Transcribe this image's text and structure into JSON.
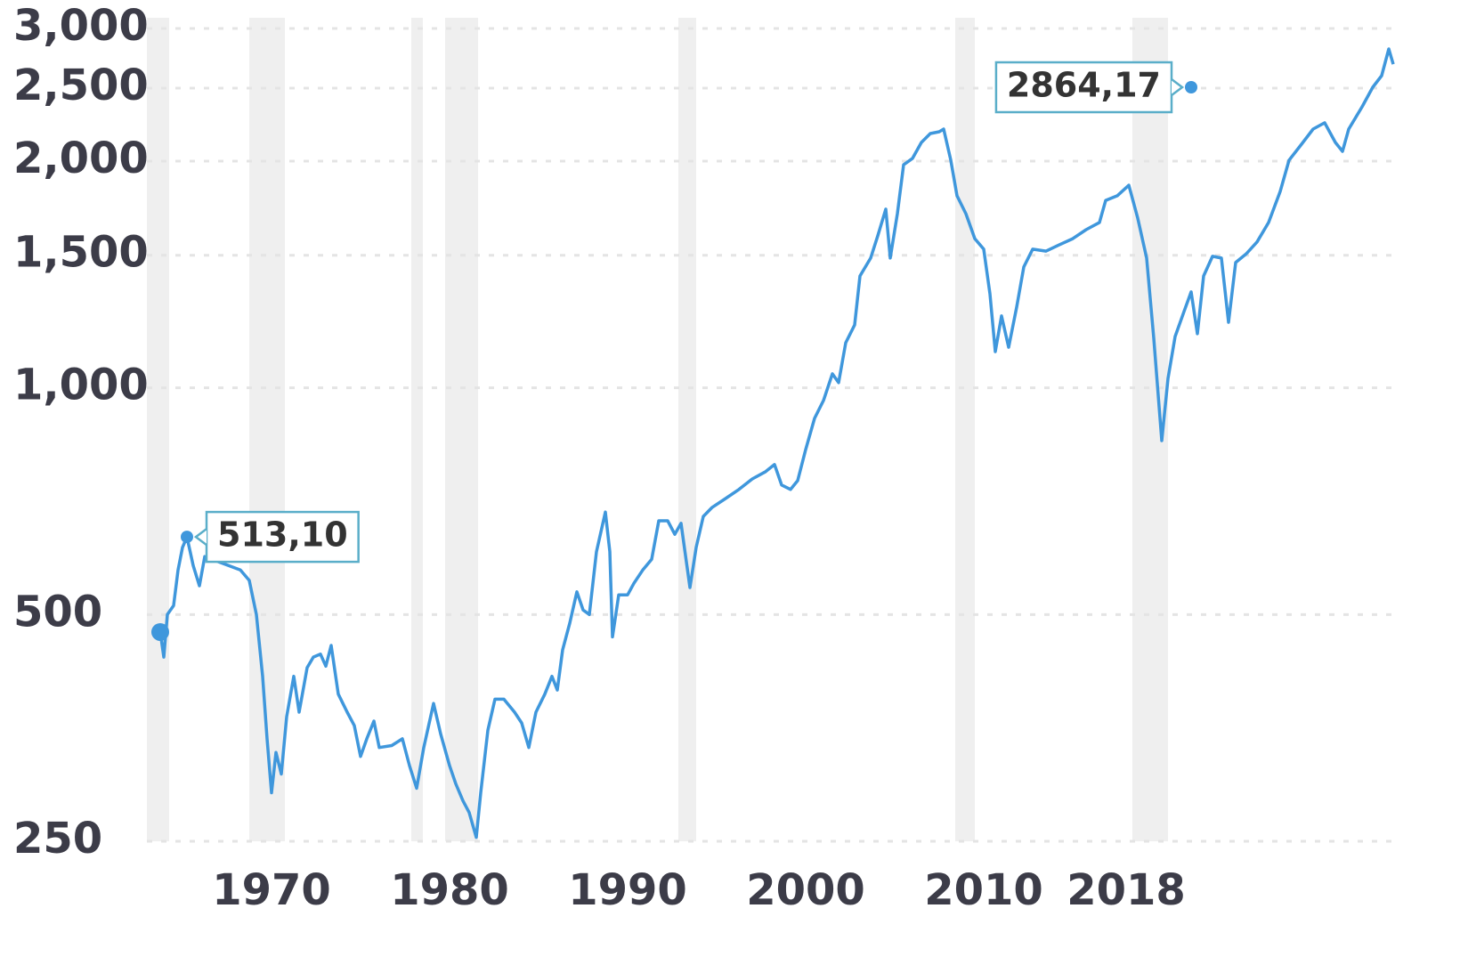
{
  "chart_data": {
    "type": "line",
    "log_scale": true,
    "grid": true,
    "xlim": [
      1963,
      2033
    ],
    "xticks": [
      1970,
      1980,
      1990,
      2000,
      2010,
      2018
    ],
    "ylim": [
      250,
      3100
    ],
    "yticks": [
      {
        "value": 3000,
        "label": "3,000"
      },
      {
        "value": 2500,
        "label": "2,500"
      },
      {
        "value": 2000,
        "label": "2,000"
      },
      {
        "value": 1500,
        "label": "1,500"
      },
      {
        "value": 1000,
        "label": "1,000"
      },
      500,
      250
    ],
    "shade_color": "#efefef",
    "shaded_periods": [
      [
        1963,
        1964.25
      ],
      [
        1968.75,
        1970.75
      ],
      [
        1977.85,
        1978.5
      ],
      [
        1979.75,
        1981.6
      ],
      [
        1992.85,
        1993.85
      ],
      [
        2008.4,
        2009.5
      ],
      [
        2018.35,
        2020.35
      ]
    ],
    "x": [
      1963.75,
      1963.95,
      1964.15,
      1964.5,
      1964.75,
      1965.0,
      1965.25,
      1965.6,
      1965.95,
      1966.25,
      1968.25,
      1968.75,
      1969.15,
      1969.5,
      1969.75,
      1970.0,
      1970.25,
      1970.55,
      1970.85,
      1971.25,
      1971.55,
      1972.0,
      1972.35,
      1972.75,
      1973.05,
      1973.35,
      1973.75,
      1974.25,
      1974.65,
      1975.0,
      1975.35,
      1975.75,
      1976.05,
      1976.75,
      1977.35,
      1977.75,
      1978.15,
      1978.55,
      1979.1,
      1979.5,
      1980.0,
      1980.35,
      1980.75,
      1981.1,
      1981.5,
      1981.75,
      1982.15,
      1982.55,
      1983.05,
      1983.65,
      1984.05,
      1984.45,
      1984.85,
      1985.35,
      1985.75,
      1986.05,
      1986.35,
      1986.75,
      1987.15,
      1987.5,
      1987.85,
      1988.25,
      1988.75,
      1989.0,
      1989.15,
      1989.5,
      1990.0,
      1990.35,
      1990.85,
      1991.35,
      1991.75,
      1992.25,
      1992.65,
      1993.0,
      1993.5,
      1993.85,
      1994.25,
      1994.75,
      1995.5,
      1996.25,
      1997.0,
      1997.75,
      1998.25,
      1998.65,
      1999.15,
      1999.55,
      2000.0,
      2000.5,
      2001.0,
      2001.5,
      2001.85,
      2002.25,
      2002.75,
      2003.05,
      2003.65,
      2004.05,
      2004.5,
      2004.75,
      2005.15,
      2005.5,
      2006.0,
      2006.5,
      2007.0,
      2007.5,
      2007.75,
      2008.15,
      2008.5,
      2009.0,
      2009.5,
      2010.0,
      2010.35,
      2010.65,
      2011.0,
      2011.4,
      2011.85,
      2012.25,
      2012.75,
      2013.5,
      2014.25,
      2015.0,
      2015.75,
      2016.5,
      2016.85,
      2017.5,
      2018.15,
      2018.65,
      2019.15,
      2019.55,
      2020.0,
      2020.35,
      2020.75,
      2021.25,
      2021.65,
      2022.0,
      2022.35,
      2022.85,
      2023.35,
      2023.75,
      2024.15,
      2024.75,
      2025.35,
      2026.0,
      2026.65,
      2027.15,
      2027.85,
      2028.5,
      2029.15,
      2029.75,
      2030.15,
      2030.5,
      2031.25,
      2031.85,
      2032.35,
      2032.75,
      2033.0
    ],
    "series": [
      {
        "color": "#3f97dc",
        "values": [
          474,
          439,
          500,
          514,
          573,
          614,
          634,
          581,
          546,
          597,
          573,
          555,
          500,
          414,
          342,
          290,
          328,
          307,
          366,
          414,
          371,
          425,
          439,
          443,
          427,
          455,
          392,
          371,
          356,
          324,
          342,
          361,
          333,
          335,
          342,
          315,
          294,
          333,
          381,
          347,
          315,
          298,
          283,
          273,
          253,
          290,
          351,
          386,
          386,
          371,
          359,
          333,
          371,
          392,
          414,
          397,
          449,
          487,
          536,
          507,
          500,
          606,
          684,
          606,
          467,
          531,
          531,
          550,
          573,
          592,
          666,
          666,
          639,
          661,
          543,
          614,
          675,
          694,
          713,
          733,
          757,
          774,
          791,
          743,
          733,
          753,
          828,
          911,
          962,
          1044,
          1016,
          1148,
          1212,
          1408,
          1487,
          1592,
          1727,
          1487,
          1703,
          1978,
          2017,
          2118,
          2176,
          2188,
          2206,
          2006,
          1799,
          1703,
          1578,
          1528,
          1333,
          1117,
          1246,
          1132,
          1280,
          1447,
          1528,
          1519,
          1549,
          1578,
          1622,
          1658,
          1774,
          1799,
          1858,
          1680,
          1487,
          1164,
          851,
          1029,
          1170,
          1263,
          1341,
          1180,
          1408,
          1495,
          1487,
          1222,
          1467,
          1507,
          1562,
          1658,
          1823,
          2006,
          2106,
          2206,
          2249,
          2118,
          2061,
          2206,
          2361,
          2507,
          2597,
          2818,
          2690
        ]
      }
    ],
    "annotations": [
      {
        "text": "513,10",
        "x": 1965.25,
        "y": 634,
        "color": "#5aaec9"
      },
      {
        "text": "2864,17",
        "x": 2021.65,
        "y": 2507,
        "color": "#5aaec9"
      }
    ]
  }
}
